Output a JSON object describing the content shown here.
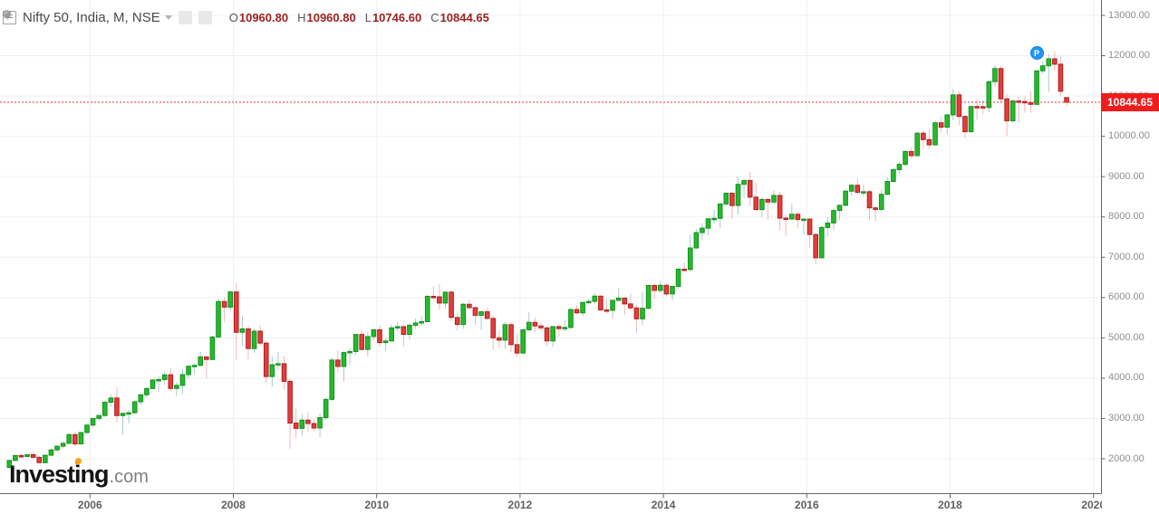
{
  "header": {
    "title": "Nifty 50, India, M, NSE",
    "ohlc": {
      "o_label": "O",
      "o": "10960.80",
      "h_label": "H",
      "h": "10960.80",
      "l_label": "L",
      "l": "10746.60",
      "c_label": "C",
      "c": "10844.65"
    }
  },
  "price_tag": "10844.65",
  "marker": {
    "label": "P",
    "month": "2019-03",
    "price": 12064
  },
  "watermark": {
    "brand": "Investing",
    "tld": ".com"
  },
  "colors": {
    "up_fill": "#28b82f",
    "up_border": "#0f9418",
    "up_wick": "#aac8d2",
    "down_fill": "#e23d3d",
    "down_border": "#b01f1f",
    "down_wick": "#f2b8b8",
    "grid": "#f0f0f0",
    "axis": "#666666",
    "last_price_line": "#e03030",
    "last_price_bg": "#ee1c1c",
    "badge_blue": "#2196f3"
  },
  "chart_data": {
    "type": "candlestick",
    "title": "Nifty 50, India, M, NSE",
    "symbol": "Nifty 50",
    "region": "India",
    "interval": "M",
    "exchange": "NSE",
    "start_month": "2004-11",
    "last_close": 10844.65,
    "current_bar": {
      "open": 10960.8,
      "high": 10960.8,
      "low": 10746.6,
      "close": 10844.65
    },
    "y_axis": {
      "step": 1000,
      "ticks": [
        {
          "v": 13000,
          "label": "13000.00"
        },
        {
          "v": 12000,
          "label": "12000.00"
        },
        {
          "v": 11000,
          "label": "11000.00"
        },
        {
          "v": 10000,
          "label": "10000.00"
        },
        {
          "v": 9000,
          "label": "9000.00"
        },
        {
          "v": 8000,
          "label": "8000.00"
        },
        {
          "v": 7000,
          "label": "7000.00"
        },
        {
          "v": 6000,
          "label": "6000.00"
        },
        {
          "v": 5000,
          "label": "5000.00"
        },
        {
          "v": 4000,
          "label": "4000.00"
        },
        {
          "v": 3000,
          "label": "3000.00"
        },
        {
          "v": 2000,
          "label": "2000.00"
        }
      ]
    },
    "x_axis": {
      "ticks": [
        {
          "year": 2006,
          "label": "2006"
        },
        {
          "year": 2008,
          "label": "2008"
        },
        {
          "year": 2010,
          "label": "2010"
        },
        {
          "year": 2012,
          "label": "2012"
        },
        {
          "year": 2014,
          "label": "2014"
        },
        {
          "year": 2016,
          "label": "2016"
        },
        {
          "year": 2018,
          "label": "2018"
        },
        {
          "year": 2020,
          "label": "2020"
        }
      ]
    },
    "candles": [
      [
        "2004-11",
        1787,
        1964,
        1775,
        1959
      ],
      [
        "2004-12",
        1959,
        2088,
        1944,
        2081
      ],
      [
        "2005-01",
        2081,
        2120,
        1995,
        2058
      ],
      [
        "2005-02",
        2058,
        2110,
        2040,
        2103
      ],
      [
        "2005-03",
        2103,
        2169,
        2017,
        2036
      ],
      [
        "2005-04",
        2036,
        2073,
        1897,
        1903
      ],
      [
        "2005-05",
        1903,
        2099,
        1895,
        2088
      ],
      [
        "2005-06",
        2088,
        2246,
        2061,
        2221
      ],
      [
        "2005-07",
        2221,
        2332,
        2171,
        2312
      ],
      [
        "2005-08",
        2312,
        2426,
        2265,
        2384
      ],
      [
        "2005-09",
        2384,
        2633,
        2369,
        2601
      ],
      [
        "2005-10",
        2601,
        2669,
        2307,
        2370
      ],
      [
        "2005-11",
        2370,
        2657,
        2366,
        2652
      ],
      [
        "2005-12",
        2652,
        2857,
        2626,
        2837
      ],
      [
        "2006-01",
        2837,
        3005,
        2783,
        3001
      ],
      [
        "2006-02",
        3001,
        3090,
        2937,
        3075
      ],
      [
        "2006-03",
        3075,
        3433,
        3046,
        3403
      ],
      [
        "2006-04",
        3403,
        3598,
        3290,
        3508
      ],
      [
        "2006-05",
        3508,
        3774,
        2897,
        3071
      ],
      [
        "2006-06",
        3071,
        3134,
        2595,
        3128
      ],
      [
        "2006-07",
        3128,
        3208,
        2878,
        3143
      ],
      [
        "2006-08",
        3143,
        3452,
        3113,
        3414
      ],
      [
        "2006-09",
        3414,
        3603,
        3328,
        3588
      ],
      [
        "2006-10",
        3588,
        3782,
        3508,
        3744
      ],
      [
        "2006-11",
        3744,
        3976,
        3737,
        3955
      ],
      [
        "2006-12",
        3955,
        4047,
        3657,
        3966
      ],
      [
        "2007-01",
        3966,
        4167,
        3833,
        4083
      ],
      [
        "2007-02",
        4083,
        4245,
        3674,
        3745
      ],
      [
        "2007-03",
        3745,
        3901,
        3555,
        3822
      ],
      [
        "2007-04",
        3822,
        4218,
        3617,
        4088
      ],
      [
        "2007-05",
        4088,
        4306,
        3981,
        4296
      ],
      [
        "2007-06",
        4296,
        4363,
        4101,
        4318
      ],
      [
        "2007-07",
        4318,
        4649,
        4304,
        4529
      ],
      [
        "2007-08",
        4529,
        4532,
        4002,
        4464
      ],
      [
        "2007-09",
        4464,
        5056,
        4445,
        5021
      ],
      [
        "2007-10",
        5021,
        5976,
        5001,
        5901
      ],
      [
        "2007-11",
        5901,
        6011,
        5394,
        5763
      ],
      [
        "2007-12",
        5763,
        6185,
        5677,
        6139
      ],
      [
        "2008-01",
        6139,
        6357,
        4448,
        5137
      ],
      [
        "2008-02",
        5137,
        5545,
        4803,
        5224
      ],
      [
        "2008-03",
        5224,
        5298,
        4469,
        4735
      ],
      [
        "2008-04",
        4735,
        5231,
        4628,
        5166
      ],
      [
        "2008-05",
        5166,
        5299,
        4801,
        4870
      ],
      [
        "2008-06",
        4870,
        4908,
        3878,
        4041
      ],
      [
        "2008-07",
        4041,
        4540,
        3790,
        4333
      ],
      [
        "2008-08",
        4333,
        4650,
        4202,
        4360
      ],
      [
        "2008-09",
        4360,
        4558,
        3715,
        3921
      ],
      [
        "2008-10",
        3921,
        4000,
        2252,
        2886
      ],
      [
        "2008-11",
        2886,
        3241,
        2503,
        2755
      ],
      [
        "2008-12",
        2755,
        3111,
        2570,
        2959
      ],
      [
        "2009-01",
        2959,
        3147,
        2661,
        2875
      ],
      [
        "2009-02",
        2875,
        2969,
        2677,
        2764
      ],
      [
        "2009-03",
        2764,
        3123,
        2539,
        3021
      ],
      [
        "2009-04",
        3021,
        3518,
        2965,
        3474
      ],
      [
        "2009-05",
        3474,
        4509,
        3434,
        4449
      ],
      [
        "2009-06",
        4449,
        4693,
        4143,
        4291
      ],
      [
        "2009-07",
        4291,
        4669,
        3918,
        4636
      ],
      [
        "2009-08",
        4636,
        4743,
        4353,
        4662
      ],
      [
        "2009-09",
        4662,
        5087,
        4576,
        5084
      ],
      [
        "2009-10",
        5084,
        5182,
        4687,
        4712
      ],
      [
        "2009-11",
        4712,
        5138,
        4538,
        5033
      ],
      [
        "2009-12",
        5033,
        5221,
        4943,
        5201
      ],
      [
        "2010-01",
        5201,
        5310,
        4766,
        4882
      ],
      [
        "2010-02",
        4882,
        4992,
        4675,
        4922
      ],
      [
        "2010-03",
        4922,
        5329,
        4912,
        5249
      ],
      [
        "2010-04",
        5249,
        5400,
        5160,
        5278
      ],
      [
        "2010-05",
        5278,
        5290,
        4786,
        5086
      ],
      [
        "2010-06",
        5086,
        5367,
        4961,
        5313
      ],
      [
        "2010-07",
        5313,
        5477,
        5225,
        5368
      ],
      [
        "2010-08",
        5368,
        5549,
        5303,
        5402
      ],
      [
        "2010-09",
        5402,
        6073,
        5392,
        6030
      ],
      [
        "2010-10",
        6030,
        6284,
        5937,
        6018
      ],
      [
        "2010-11",
        6018,
        6338,
        5690,
        5863
      ],
      [
        "2010-12",
        5863,
        6147,
        5721,
        6134
      ],
      [
        "2011-01",
        6134,
        6181,
        5416,
        5506
      ],
      [
        "2011-02",
        5506,
        5599,
        5178,
        5333
      ],
      [
        "2011-03",
        5333,
        5872,
        5222,
        5833
      ],
      [
        "2011-04",
        5833,
        5944,
        5693,
        5750
      ],
      [
        "2011-05",
        5750,
        5775,
        5329,
        5560
      ],
      [
        "2011-06",
        5560,
        5658,
        5196,
        5647
      ],
      [
        "2011-07",
        5647,
        5740,
        5454,
        5482
      ],
      [
        "2011-08",
        5482,
        5552,
        4720,
        5001
      ],
      [
        "2011-09",
        5001,
        5169,
        4759,
        4943
      ],
      [
        "2011-10",
        4943,
        5400,
        4729,
        5327
      ],
      [
        "2011-11",
        5327,
        5399,
        4639,
        4832
      ],
      [
        "2011-12",
        4832,
        5099,
        4531,
        4624
      ],
      [
        "2012-01",
        4624,
        5217,
        4588,
        5199
      ],
      [
        "2012-02",
        5199,
        5630,
        5159,
        5385
      ],
      [
        "2012-03",
        5385,
        5499,
        5136,
        5296
      ],
      [
        "2012-04",
        5296,
        5379,
        5154,
        5248
      ],
      [
        "2012-05",
        5248,
        5280,
        4788,
        4924
      ],
      [
        "2012-06",
        4924,
        5286,
        4770,
        5279
      ],
      [
        "2012-07",
        5279,
        5349,
        5032,
        5229
      ],
      [
        "2012-08",
        5229,
        5448,
        5164,
        5259
      ],
      [
        "2012-09",
        5259,
        5735,
        5216,
        5703
      ],
      [
        "2012-10",
        5703,
        5815,
        5588,
        5620
      ],
      [
        "2012-11",
        5620,
        5885,
        5548,
        5880
      ],
      [
        "2012-12",
        5880,
        5965,
        5823,
        5905
      ],
      [
        "2013-01",
        5905,
        6112,
        5852,
        6035
      ],
      [
        "2013-02",
        6035,
        6052,
        5671,
        5693
      ],
      [
        "2013-03",
        5693,
        5971,
        5604,
        5683
      ],
      [
        "2013-04",
        5683,
        5962,
        5477,
        5930
      ],
      [
        "2013-05",
        5930,
        6229,
        5910,
        5986
      ],
      [
        "2013-06",
        5986,
        6011,
        5566,
        5842
      ],
      [
        "2013-07",
        5842,
        6093,
        5675,
        5742
      ],
      [
        "2013-08",
        5742,
        5808,
        5119,
        5472
      ],
      [
        "2013-09",
        5472,
        6142,
        5318,
        5735
      ],
      [
        "2013-10",
        5735,
        6309,
        5700,
        6299
      ],
      [
        "2013-11",
        6299,
        6343,
        5972,
        6176
      ],
      [
        "2013-12",
        6176,
        6415,
        6129,
        6304
      ],
      [
        "2014-01",
        6304,
        6358,
        6027,
        6090
      ],
      [
        "2014-02",
        6090,
        6282,
        5933,
        6277
      ],
      [
        "2014-03",
        6277,
        6730,
        6212,
        6704
      ],
      [
        "2014-04",
        6704,
        6869,
        6650,
        6696
      ],
      [
        "2014-05",
        6696,
        7563,
        6638,
        7230
      ],
      [
        "2014-06",
        7230,
        7700,
        7207,
        7611
      ],
      [
        "2014-07",
        7611,
        7840,
        7422,
        7721
      ],
      [
        "2014-08",
        7721,
        7968,
        7540,
        7954
      ],
      [
        "2014-09",
        7954,
        8180,
        7842,
        7965
      ],
      [
        "2014-10",
        7965,
        8331,
        7724,
        8322
      ],
      [
        "2014-11",
        8322,
        8617,
        8290,
        8588
      ],
      [
        "2014-12",
        8588,
        8627,
        7961,
        8283
      ],
      [
        "2015-01",
        8283,
        8997,
        8065,
        8809
      ],
      [
        "2015-02",
        8809,
        8941,
        8470,
        8902
      ],
      [
        "2015-03",
        8902,
        9119,
        8269,
        8491
      ],
      [
        "2015-04",
        8491,
        8844,
        8144,
        8182
      ],
      [
        "2015-05",
        8182,
        8489,
        7997,
        8434
      ],
      [
        "2015-06",
        8434,
        8467,
        7940,
        8369
      ],
      [
        "2015-07",
        8369,
        8655,
        8315,
        8533
      ],
      [
        "2015-08",
        8533,
        8621,
        7667,
        7971
      ],
      [
        "2015-09",
        7971,
        8055,
        7539,
        7949
      ],
      [
        "2015-10",
        7949,
        8336,
        7930,
        8066
      ],
      [
        "2015-11",
        8066,
        8116,
        7714,
        7935
      ],
      [
        "2015-12",
        7935,
        7979,
        7551,
        7946
      ],
      [
        "2016-01",
        7946,
        7972,
        7241,
        7564
      ],
      [
        "2016-02",
        7564,
        7600,
        6826,
        6987
      ],
      [
        "2016-03",
        6987,
        7777,
        6961,
        7738
      ],
      [
        "2016-04",
        7738,
        7992,
        7516,
        7850
      ],
      [
        "2016-05",
        7850,
        8214,
        7678,
        8160
      ],
      [
        "2016-06",
        8160,
        8309,
        7927,
        8288
      ],
      [
        "2016-07",
        8288,
        8675,
        8287,
        8639
      ],
      [
        "2016-08",
        8639,
        8820,
        8518,
        8786
      ],
      [
        "2016-09",
        8786,
        8969,
        8555,
        8611
      ],
      [
        "2016-10",
        8611,
        8807,
        8506,
        8626
      ],
      [
        "2016-11",
        8626,
        8670,
        7916,
        8225
      ],
      [
        "2016-12",
        8225,
        8275,
        7894,
        8186
      ],
      [
        "2017-01",
        8186,
        8673,
        8134,
        8561
      ],
      [
        "2017-02",
        8561,
        8983,
        8537,
        8880
      ],
      [
        "2017-03",
        8880,
        9218,
        8861,
        9174
      ],
      [
        "2017-04",
        9174,
        9367,
        9075,
        9304
      ],
      [
        "2017-05",
        9304,
        9650,
        9269,
        9621
      ],
      [
        "2017-06",
        9621,
        9709,
        9448,
        9521
      ],
      [
        "2017-07",
        9521,
        10115,
        9520,
        10077
      ],
      [
        "2017-08",
        10077,
        10138,
        9685,
        9918
      ],
      [
        "2017-09",
        9918,
        10179,
        9688,
        9789
      ],
      [
        "2017-10",
        9789,
        10384,
        9768,
        10335
      ],
      [
        "2017-11",
        10335,
        10490,
        10094,
        10227
      ],
      [
        "2017-12",
        10227,
        10552,
        10033,
        10531
      ],
      [
        "2018-01",
        10531,
        11172,
        10404,
        11028
      ],
      [
        "2018-02",
        11028,
        11117,
        10276,
        10493
      ],
      [
        "2018-03",
        10493,
        10525,
        9952,
        10114
      ],
      [
        "2018-04",
        10114,
        10759,
        10111,
        10739
      ],
      [
        "2018-05",
        10739,
        10929,
        10418,
        10736
      ],
      [
        "2018-06",
        10736,
        10893,
        10551,
        10714
      ],
      [
        "2018-07",
        10714,
        11366,
        10605,
        11357
      ],
      [
        "2018-08",
        11357,
        11760,
        11234,
        11681
      ],
      [
        "2018-09",
        11681,
        11752,
        10850,
        10930
      ],
      [
        "2018-10",
        10930,
        11036,
        10005,
        10386
      ],
      [
        "2018-11",
        10386,
        10922,
        10342,
        10877
      ],
      [
        "2018-12",
        10877,
        10985,
        10333,
        10863
      ],
      [
        "2019-01",
        10863,
        10987,
        10583,
        10831
      ],
      [
        "2019-02",
        10831,
        11118,
        10586,
        10793
      ],
      [
        "2019-03",
        10793,
        11630,
        10785,
        11624
      ],
      [
        "2019-04",
        11624,
        11856,
        11549,
        11748
      ],
      [
        "2019-05",
        11748,
        12041,
        11108,
        11923
      ],
      [
        "2019-06",
        11923,
        12103,
        11625,
        11789
      ],
      [
        "2019-07",
        11789,
        11982,
        10999,
        11118
      ],
      [
        "2019-08",
        10960.8,
        10960.8,
        10746.6,
        10844.65
      ]
    ]
  }
}
